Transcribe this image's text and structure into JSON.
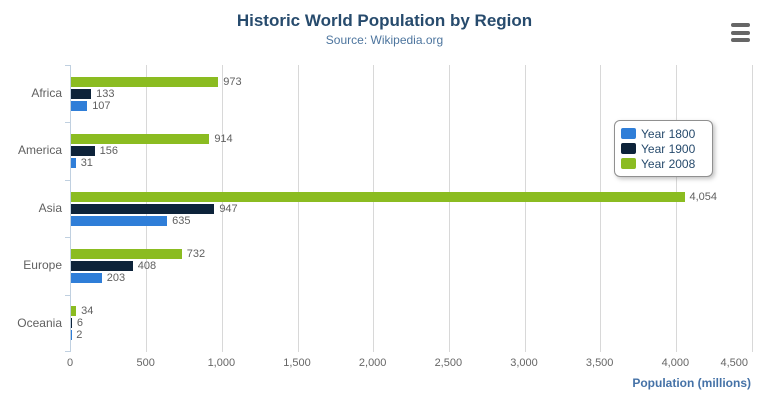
{
  "chart_data": {
    "type": "bar",
    "orientation": "horizontal",
    "title": "Historic World Population by Region",
    "subtitle": "Source: Wikipedia.org",
    "categories": [
      "Africa",
      "America",
      "Asia",
      "Europe",
      "Oceania"
    ],
    "series": [
      {
        "name": "Year 1800",
        "color": "#2f7ed8",
        "values": [
          107,
          31,
          635,
          203,
          2
        ]
      },
      {
        "name": "Year 1900",
        "color": "#0d233a",
        "values": [
          133,
          156,
          947,
          408,
          6
        ]
      },
      {
        "name": "Year 2008",
        "color": "#8bbc21",
        "values": [
          973,
          914,
          4054,
          732,
          34
        ]
      }
    ],
    "bar_order_top_to_bottom": [
      "Year 2008",
      "Year 1900",
      "Year 1800"
    ],
    "xlabel": "Population (millions)",
    "ylabel": "",
    "xlim": [
      0,
      4500
    ],
    "x_ticks": [
      0,
      500,
      1000,
      1500,
      2000,
      2500,
      3000,
      3500,
      4000,
      4500
    ],
    "grid": true,
    "value_labels": true,
    "legend_position": "right"
  },
  "export_menu": {
    "icon": "hamburger-icon"
  },
  "colors": {
    "title": "#274b6d",
    "subtitle": "#4d759e",
    "axis_line": "#C0D0E0",
    "gridline": "#D8D8D8",
    "tick_label": "#666666",
    "category_label": "#606060",
    "value_label": "#606060",
    "axis_title": "#4572A7",
    "legend_text": "#274b6d",
    "legend_border": "#909090",
    "export_icon": "#666666"
  }
}
